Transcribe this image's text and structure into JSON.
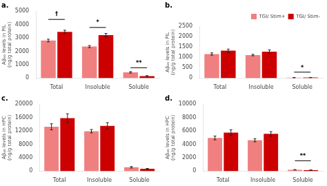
{
  "chart_data": [
    {
      "type": "bar",
      "title": "a.",
      "ylabel": "Aβ₄₀ levels in PIL\n(ng/g total protein)",
      "categories": [
        "Total",
        "Insoluble",
        "Soluble"
      ],
      "series": [
        {
          "name": "TGI/ Stim+",
          "color": "#F08080",
          "values": [
            2800,
            2350,
            430
          ],
          "errors": [
            100,
            80,
            55
          ]
        },
        {
          "name": "TGI/ Stim-",
          "color": "#CC0000",
          "values": [
            3450,
            3200,
            150
          ],
          "errors": [
            120,
            130,
            35
          ]
        }
      ],
      "annotations": [
        {
          "text": "†",
          "category": "Total",
          "y": 4550,
          "line_y": 4375
        },
        {
          "text": "*",
          "category": "Insoluble",
          "y": 3950,
          "line_y": 3775
        },
        {
          "text": "**",
          "category": "Soluble",
          "y": 875,
          "line_y": 775
        }
      ],
      "ylim": [
        0,
        5000
      ],
      "yticks": [
        0,
        1000,
        2000,
        3000,
        4000,
        5000
      ],
      "grid": false
    },
    {
      "type": "bar",
      "title": "b.",
      "ylabel": "Aβ₄₀ levels in PIL\n(ng/g total protein)",
      "categories": [
        "Total",
        "Insoluble",
        "Soluble"
      ],
      "series": [
        {
          "name": "TGI/ Stim+",
          "color": "#F08080",
          "values": [
            1160,
            1110,
            22
          ],
          "errors": [
            55,
            35,
            5
          ]
        },
        {
          "name": "TGI/ Stim-",
          "color": "#CC0000",
          "values": [
            1320,
            1270,
            28
          ],
          "errors": [
            75,
            90,
            5
          ]
        }
      ],
      "annotations": [
        {
          "text": "*",
          "category": "Soluble",
          "y": 337.5,
          "line_y": 287.5
        }
      ],
      "ylim": [
        0,
        2500
      ],
      "yticks": [
        0,
        500,
        1000,
        1500,
        2000,
        2500
      ],
      "grid": false,
      "legend": "upper right"
    },
    {
      "type": "bar",
      "title": "c.",
      "ylabel": "Aβ₄₀ levels in HPC\n(ng/g total protein)",
      "categories": [
        "Total",
        "Insoluble",
        "Soluble"
      ],
      "series": [
        {
          "name": "TGI/ Stim+",
          "color": "#F08080",
          "values": [
            13200,
            11900,
            1150
          ],
          "errors": [
            900,
            500,
            220
          ]
        },
        {
          "name": "TGI/ Stim-",
          "color": "#CC0000",
          "values": [
            15800,
            13500,
            680
          ],
          "errors": [
            1300,
            950,
            130
          ]
        }
      ],
      "ylim": [
        0,
        20000
      ],
      "yticks": [
        0,
        4000,
        8000,
        12000,
        16000,
        20000
      ],
      "grid": false
    },
    {
      "type": "bar",
      "title": "d.",
      "ylabel": "Aβ₄₀ levels in HPC\n(ng/g total protein)",
      "categories": [
        "Total",
        "Insoluble",
        "Soluble"
      ],
      "series": [
        {
          "name": "TGI/ Stim+",
          "color": "#F08080",
          "values": [
            4950,
            4600,
            200
          ],
          "errors": [
            280,
            240,
            30
          ]
        },
        {
          "name": "TGI/ Stim-",
          "color": "#CC0000",
          "values": [
            5750,
            5550,
            150
          ],
          "errors": [
            420,
            330,
            25
          ]
        }
      ],
      "annotations": [
        {
          "text": "**",
          "category": "Soluble",
          "y": 1750,
          "line_y": 1550
        }
      ],
      "ylim": [
        0,
        10000
      ],
      "yticks": [
        0,
        2000,
        4000,
        6000,
        8000,
        10000
      ],
      "grid": false
    }
  ]
}
